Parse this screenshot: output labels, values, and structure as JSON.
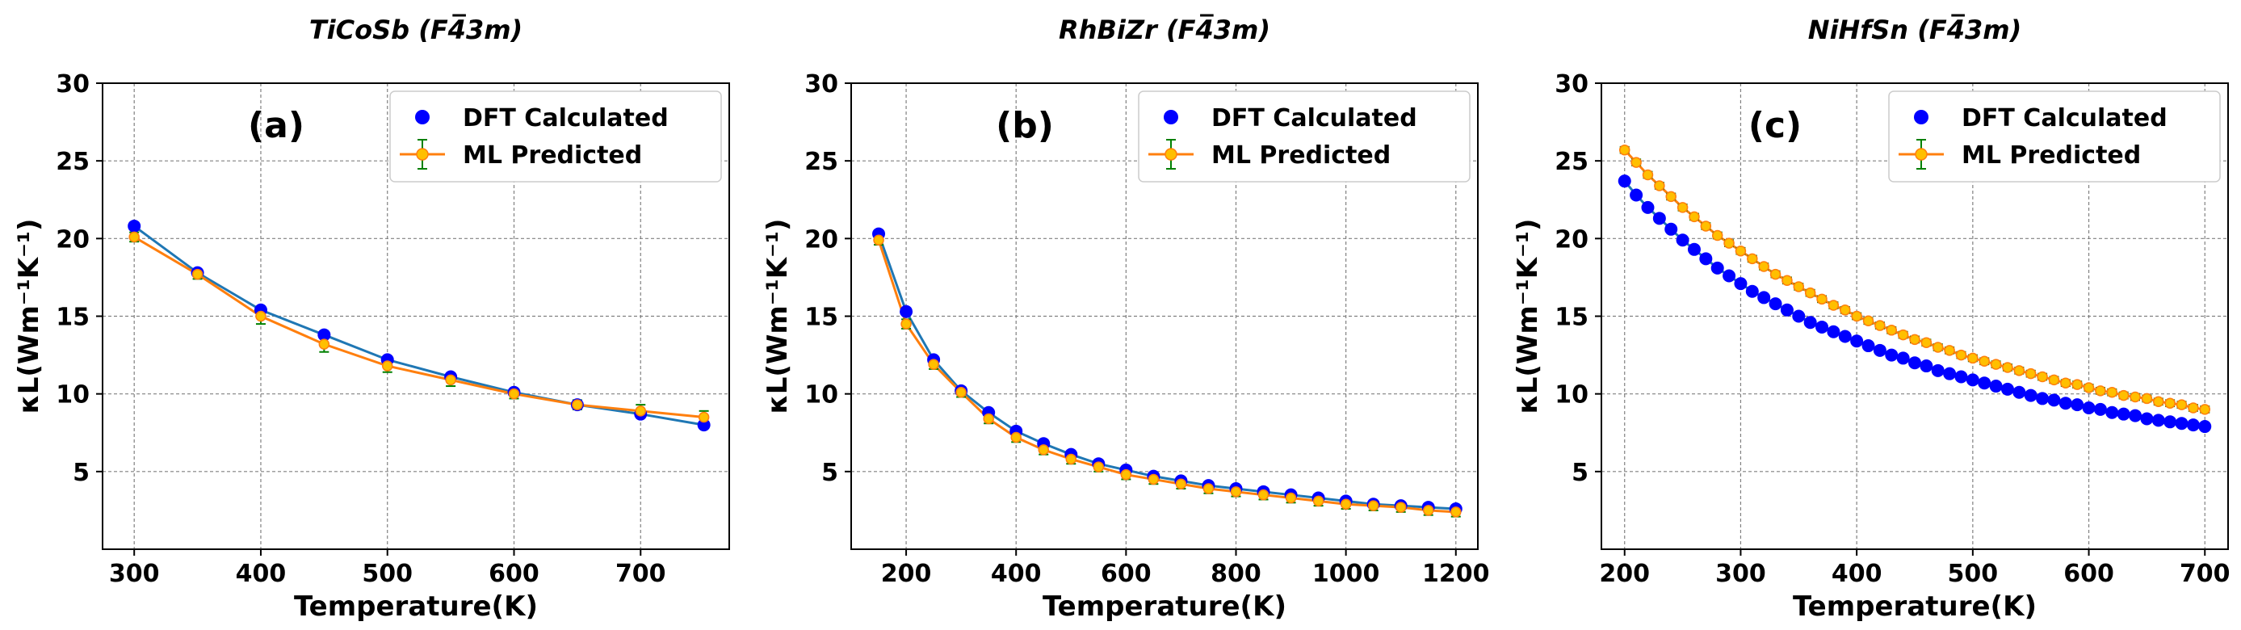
{
  "colors": {
    "dft_line": "#1f77b4",
    "dft_marker": "#0000ff",
    "ml_line": "#ff7f0e",
    "ml_marker": "#ffbf00",
    "ml_errorbar": "#008000",
    "grid": "#808080"
  },
  "chart_data": [
    {
      "type": "line",
      "title": "TiCoSb (F4̅3m)",
      "panel_label": "(a)",
      "xlabel": "Temperature(K)",
      "ylabel": "κL(Wm⁻¹K⁻¹)",
      "xlim": [
        275,
        770
      ],
      "ylim": [
        0,
        30
      ],
      "xticks": [
        300,
        400,
        500,
        600,
        700
      ],
      "yticks": [
        5,
        10,
        15,
        20,
        25,
        30
      ],
      "legend": [
        "DFT Calculated",
        "ML Predicted"
      ],
      "series": [
        {
          "name": "DFT Calculated",
          "x": [
            300,
            350,
            400,
            450,
            500,
            550,
            600,
            650,
            700,
            750
          ],
          "values": [
            20.8,
            17.8,
            15.4,
            13.8,
            12.2,
            11.1,
            10.1,
            9.3,
            8.7,
            8.0
          ]
        },
        {
          "name": "ML Predicted",
          "x": [
            300,
            350,
            400,
            450,
            500,
            550,
            600,
            650,
            700,
            750
          ],
          "values": [
            20.1,
            17.7,
            15.0,
            13.2,
            11.8,
            10.9,
            10.0,
            9.3,
            8.9,
            8.5
          ],
          "error": [
            0.3,
            0.3,
            0.5,
            0.5,
            0.4,
            0.4,
            0.3,
            0.3,
            0.4,
            0.4
          ]
        }
      ]
    },
    {
      "type": "line",
      "title": "RhBiZr (F4̅3m)",
      "panel_label": "(b)",
      "xlabel": "Temperature(K)",
      "ylabel": "κL(Wm⁻¹K⁻¹)",
      "xlim": [
        100,
        1240
      ],
      "ylim": [
        0,
        30
      ],
      "xticks": [
        200,
        400,
        600,
        800,
        1000,
        1200
      ],
      "yticks": [
        5,
        10,
        15,
        20,
        25,
        30
      ],
      "legend": [
        "DFT Calculated",
        "ML Predicted"
      ],
      "series": [
        {
          "name": "DFT Calculated",
          "x": [
            150,
            200,
            250,
            300,
            350,
            400,
            450,
            500,
            550,
            600,
            650,
            700,
            750,
            800,
            850,
            900,
            950,
            1000,
            1050,
            1100,
            1150,
            1200
          ],
          "values": [
            20.3,
            15.3,
            12.2,
            10.2,
            8.8,
            7.6,
            6.8,
            6.1,
            5.5,
            5.1,
            4.7,
            4.4,
            4.1,
            3.9,
            3.7,
            3.5,
            3.3,
            3.1,
            2.9,
            2.8,
            2.7,
            2.6
          ]
        },
        {
          "name": "ML Predicted",
          "x": [
            150,
            200,
            250,
            300,
            350,
            400,
            450,
            500,
            550,
            600,
            650,
            700,
            750,
            800,
            850,
            900,
            950,
            1000,
            1050,
            1100,
            1150,
            1200
          ],
          "values": [
            19.9,
            14.5,
            11.9,
            10.1,
            8.4,
            7.2,
            6.4,
            5.8,
            5.3,
            4.8,
            4.5,
            4.2,
            3.9,
            3.7,
            3.5,
            3.3,
            3.1,
            2.9,
            2.8,
            2.7,
            2.5,
            2.4
          ],
          "error": [
            0.3,
            0.3,
            0.3,
            0.3,
            0.3,
            0.3,
            0.3,
            0.3,
            0.3,
            0.3,
            0.3,
            0.3,
            0.3,
            0.3,
            0.3,
            0.3,
            0.3,
            0.3,
            0.3,
            0.3,
            0.3,
            0.3
          ]
        }
      ]
    },
    {
      "type": "line",
      "title": "NiHfSn (F4̅3m)",
      "panel_label": "(c)",
      "xlabel": "Temperature(K)",
      "ylabel": "κL(Wm⁻¹K⁻¹)",
      "xlim": [
        180,
        720
      ],
      "ylim": [
        0,
        30
      ],
      "xticks": [
        200,
        300,
        400,
        500,
        600,
        700
      ],
      "yticks": [
        5,
        10,
        15,
        20,
        25,
        30
      ],
      "legend": [
        "DFT Calculated",
        "ML Predicted"
      ],
      "series": [
        {
          "name": "DFT Calculated",
          "x": [
            200,
            210,
            220,
            230,
            240,
            250,
            260,
            270,
            280,
            290,
            300,
            310,
            320,
            330,
            340,
            350,
            360,
            370,
            380,
            390,
            400,
            410,
            420,
            430,
            440,
            450,
            460,
            470,
            480,
            490,
            500,
            510,
            520,
            530,
            540,
            550,
            560,
            570,
            580,
            590,
            600,
            610,
            620,
            630,
            640,
            650,
            660,
            670,
            680,
            690,
            700
          ],
          "values": [
            23.7,
            22.8,
            22.0,
            21.3,
            20.6,
            19.9,
            19.3,
            18.7,
            18.1,
            17.6,
            17.1,
            16.6,
            16.2,
            15.8,
            15.4,
            15.0,
            14.6,
            14.3,
            14.0,
            13.7,
            13.4,
            13.1,
            12.8,
            12.5,
            12.3,
            12.0,
            11.8,
            11.5,
            11.3,
            11.1,
            10.9,
            10.7,
            10.5,
            10.3,
            10.1,
            9.9,
            9.7,
            9.6,
            9.4,
            9.3,
            9.1,
            9.0,
            8.8,
            8.7,
            8.6,
            8.4,
            8.3,
            8.2,
            8.1,
            8.0,
            7.9
          ]
        },
        {
          "name": "ML Predicted",
          "x": [
            200,
            210,
            220,
            230,
            240,
            250,
            260,
            270,
            280,
            290,
            300,
            310,
            320,
            330,
            340,
            350,
            360,
            370,
            380,
            390,
            400,
            410,
            420,
            430,
            440,
            450,
            460,
            470,
            480,
            490,
            500,
            510,
            520,
            530,
            540,
            550,
            560,
            570,
            580,
            590,
            600,
            610,
            620,
            630,
            640,
            650,
            660,
            670,
            680,
            690,
            700
          ],
          "values": [
            25.7,
            24.9,
            24.1,
            23.4,
            22.7,
            22.0,
            21.4,
            20.8,
            20.2,
            19.7,
            19.2,
            18.7,
            18.2,
            17.7,
            17.3,
            16.9,
            16.5,
            16.1,
            15.7,
            15.4,
            15.0,
            14.7,
            14.4,
            14.1,
            13.8,
            13.5,
            13.3,
            13.0,
            12.8,
            12.5,
            12.3,
            12.1,
            11.9,
            11.7,
            11.5,
            11.3,
            11.1,
            10.9,
            10.7,
            10.6,
            10.4,
            10.2,
            10.1,
            9.9,
            9.8,
            9.7,
            9.5,
            9.4,
            9.3,
            9.1,
            9.0
          ],
          "error": [
            0.2,
            0.2,
            0.2,
            0.2,
            0.2,
            0.2,
            0.2,
            0.2,
            0.2,
            0.2,
            0.2,
            0.2,
            0.2,
            0.2,
            0.2,
            0.2,
            0.2,
            0.2,
            0.2,
            0.2,
            0.2,
            0.2,
            0.2,
            0.2,
            0.2,
            0.2,
            0.2,
            0.2,
            0.2,
            0.2,
            0.2,
            0.2,
            0.2,
            0.2,
            0.2,
            0.2,
            0.2,
            0.2,
            0.2,
            0.2,
            0.2,
            0.2,
            0.2,
            0.2,
            0.2,
            0.2,
            0.2,
            0.2,
            0.2,
            0.2,
            0.2
          ]
        }
      ]
    }
  ]
}
